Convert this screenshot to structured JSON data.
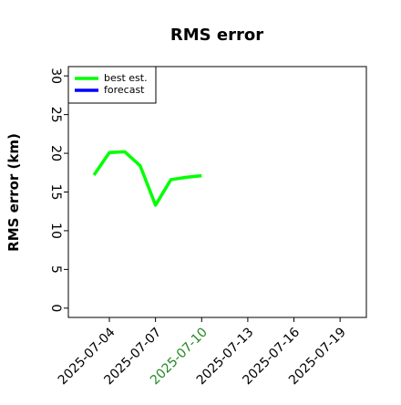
{
  "chart_data": {
    "type": "line",
    "title": "RMS error",
    "ylabel": "RMS error (km)",
    "x": [
      "2025-07-03",
      "2025-07-04",
      "2025-07-05",
      "2025-07-06",
      "2025-07-07",
      "2025-07-08",
      "2025-07-09",
      "2025-07-10"
    ],
    "series": [
      {
        "name": "best est.",
        "color": "#00ff00",
        "values": [
          17.2,
          20.1,
          20.2,
          18.4,
          13.3,
          16.6,
          16.9,
          17.1
        ]
      },
      {
        "name": "forecast",
        "color": "#0000ff",
        "values": [
          null,
          null,
          null,
          null,
          null,
          null,
          null,
          null
        ]
      }
    ],
    "xlim": [
      "2025-07-01T08:00",
      "2025-07-20T17:00"
    ],
    "xticks": [
      "2025-07-04",
      "2025-07-07",
      "2025-07-10",
      "2025-07-13",
      "2025-07-16",
      "2025-07-19"
    ],
    "highlight_xtick": "2025-07-10",
    "highlight_color": "#228b22",
    "ylim": [
      -1.2,
      31.2
    ],
    "yticks": [
      0,
      5,
      10,
      15,
      20,
      25,
      30
    ],
    "legend": "upper left",
    "grid": false
  }
}
